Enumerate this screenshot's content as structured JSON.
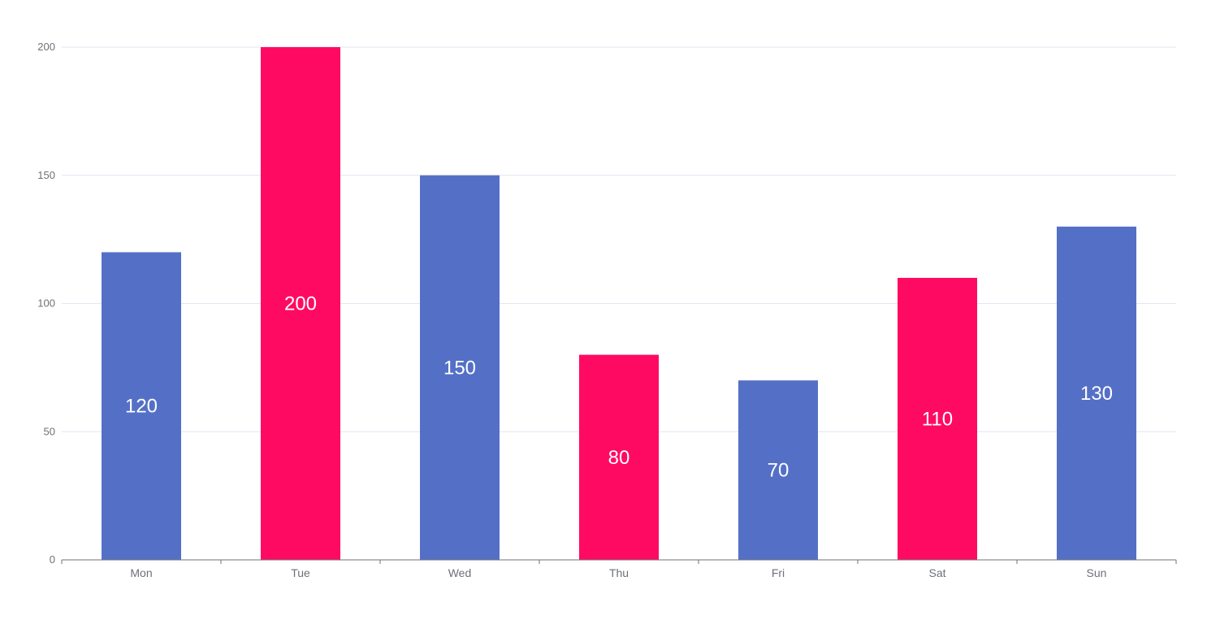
{
  "chart_data": {
    "type": "bar",
    "categories": [
      "Mon",
      "Tue",
      "Wed",
      "Thu",
      "Fri",
      "Sat",
      "Sun"
    ],
    "values": [
      120,
      200,
      150,
      80,
      70,
      110,
      130
    ],
    "ylim": [
      0,
      200
    ],
    "yticks": [
      "0",
      "50",
      "100",
      "150",
      "200"
    ],
    "grid": true,
    "show_value_labels": true,
    "colors": {
      "primary": "#5470c6",
      "highlight": "#ff0a62",
      "grid": "#e0e6f1",
      "axis": "#6e7079",
      "label_text": "#ffffff"
    },
    "bar_colors": [
      "#5470c6",
      "#ff0a62",
      "#5470c6",
      "#ff0a62",
      "#5470c6",
      "#ff0a62",
      "#5470c6"
    ]
  }
}
